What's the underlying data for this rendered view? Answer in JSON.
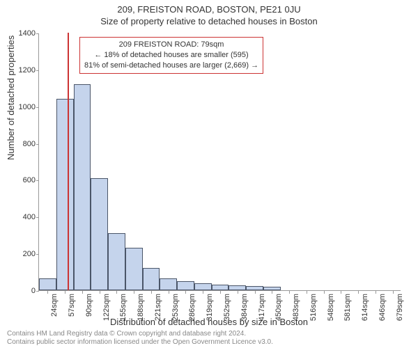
{
  "title_main": "209, FREISTON ROAD, BOSTON, PE21 0JU",
  "title_sub": "Size of property relative to detached houses in Boston",
  "ylabel": "Number of detached properties",
  "xlabel": "Distribution of detached houses by size in Boston",
  "chart": {
    "type": "histogram",
    "ylim": [
      0,
      1400
    ],
    "ytick_step": 200,
    "yticks": [
      0,
      200,
      400,
      600,
      800,
      1000,
      1200,
      1400
    ],
    "xticks": [
      "24sqm",
      "57sqm",
      "90sqm",
      "122sqm",
      "155sqm",
      "188sqm",
      "221sqm",
      "253sqm",
      "286sqm",
      "319sqm",
      "352sqm",
      "384sqm",
      "417sqm",
      "450sqm",
      "483sqm",
      "516sqm",
      "548sqm",
      "581sqm",
      "614sqm",
      "646sqm",
      "679sqm"
    ],
    "bars": [
      65,
      1040,
      1120,
      610,
      310,
      230,
      120,
      65,
      50,
      38,
      30,
      25,
      22,
      18,
      0,
      0,
      0,
      0,
      0,
      0,
      0
    ],
    "bar_fill": "#c5d4ec",
    "bar_stroke": "#4a5568",
    "axis_color": "#999999",
    "background_color": "#ffffff",
    "marker_value_sqm": 79,
    "marker_color": "#cc3333",
    "axis_fontsize": 11,
    "label_fontsize": 13,
    "title_fontsize": 13
  },
  "callout": {
    "line1": "209 FREISTON ROAD: 79sqm",
    "line2": "← 18% of detached houses are smaller (595)",
    "line3": "81% of semi-detached houses are larger (2,669) →",
    "border_color": "#cc3333"
  },
  "footer": {
    "line1": "Contains HM Land Registry data © Crown copyright and database right 2024.",
    "line2": "Contains public sector information licensed under the Open Government Licence v3.0."
  }
}
